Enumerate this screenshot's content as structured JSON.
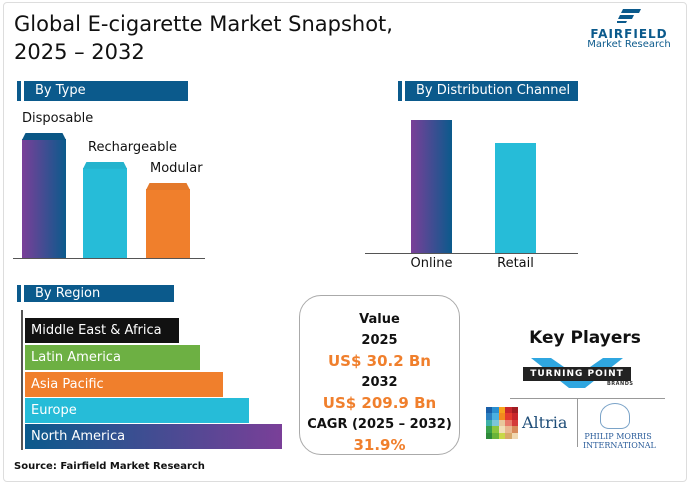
{
  "title_line1": "Global E-cigarette Market Snapshot,",
  "title_line2": "2025 – 2032",
  "logo": {
    "name": "FAIRFIELD",
    "sub": "Market Research"
  },
  "by_type": {
    "header": "By Type"
  },
  "by_channel": {
    "header": "By Distribution Channel"
  },
  "by_region": {
    "header": "By Region"
  },
  "value_box": {
    "label": "Value",
    "year1": "2025",
    "value1": "US$ 30.2 Bn",
    "year2": "2032",
    "value2": "US$ 209.9 Bn",
    "cagr_label": "CAGR (2025 – 2032)",
    "cagr": "31.9%"
  },
  "key_players": {
    "title": "Key Players",
    "players": [
      "TURNING POINT",
      "Altria",
      "PHILIP MORRIS INTERNATIONAL"
    ],
    "tp_sub": "BRANDS"
  },
  "source": "Source: Fairfield Market Research",
  "chart_data": [
    {
      "type": "bar",
      "title": "By Type",
      "categories": [
        "Disposable",
        "Rechargeable",
        "Modular"
      ],
      "values": [
        100,
        77,
        60
      ],
      "colors": [
        "#6a3f96",
        "#26bcd8",
        "#f07f2c"
      ]
    },
    {
      "type": "bar",
      "title": "By Distribution Channel",
      "categories": [
        "Online",
        "Retail"
      ],
      "values": [
        100,
        83
      ],
      "colors": [
        "#6a3f96",
        "#26bcd8"
      ]
    },
    {
      "type": "bar",
      "orientation": "horizontal",
      "title": "By Region",
      "categories": [
        "Middle East & Africa",
        "Latin America",
        "Asia Pacific",
        "Europe",
        "North America"
      ],
      "values": [
        60,
        68,
        77,
        87,
        100
      ],
      "colors": [
        "#111111",
        "#6db043",
        "#f07f2c",
        "#26bcd8",
        "#0b5a8c"
      ]
    }
  ]
}
